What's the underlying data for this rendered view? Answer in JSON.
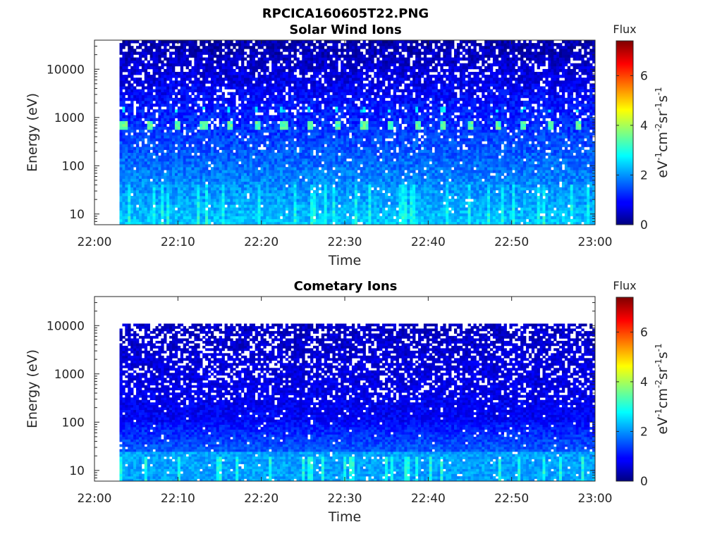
{
  "figure": {
    "title": "RPCICA160605T22.PNG"
  },
  "chart_data": [
    {
      "type": "heatmap",
      "title": "Solar Wind Ions",
      "xlabel": "Time",
      "ylabel": "Energy (eV)",
      "x_range": [
        "22:00",
        "23:00"
      ],
      "x_ticks": [
        "22:00",
        "22:10",
        "22:20",
        "22:30",
        "22:40",
        "22:50",
        "23:00"
      ],
      "y_scale": "log",
      "y_range": [
        6,
        40000
      ],
      "y_ticks": [
        "10",
        "100",
        "1000",
        "10000"
      ],
      "data_time_range": [
        "22:03",
        "23:00"
      ],
      "data_energy_range": [
        6,
        40000
      ],
      "features": [
        {
          "energy_eV": 700,
          "flux": 3.5,
          "period_min": 3.2
        }
      ],
      "colorbar": {
        "label": "Flux",
        "unit": "eV-1cm-2sr-1s-1",
        "range": [
          0,
          7.4
        ],
        "ticks": [
          "0",
          "2",
          "4",
          "6"
        ],
        "colormap": "jet"
      }
    },
    {
      "type": "heatmap",
      "title": "Cometary Ions",
      "xlabel": "Time",
      "ylabel": "Energy (eV)",
      "x_range": [
        "22:00",
        "23:00"
      ],
      "x_ticks": [
        "22:00",
        "22:10",
        "22:20",
        "22:30",
        "22:40",
        "22:50",
        "23:00"
      ],
      "y_scale": "log",
      "y_range": [
        6,
        40000
      ],
      "y_ticks": [
        "10",
        "100",
        "1000",
        "10000"
      ],
      "data_time_range": [
        "22:03",
        "23:00"
      ],
      "data_energy_range": [
        6,
        11000
      ],
      "colorbar": {
        "label": "Flux",
        "unit": "eV-1cm-2sr-1s-1",
        "range": [
          0,
          7.4
        ],
        "ticks": [
          "0",
          "2",
          "4",
          "6"
        ],
        "colormap": "jet"
      }
    }
  ]
}
